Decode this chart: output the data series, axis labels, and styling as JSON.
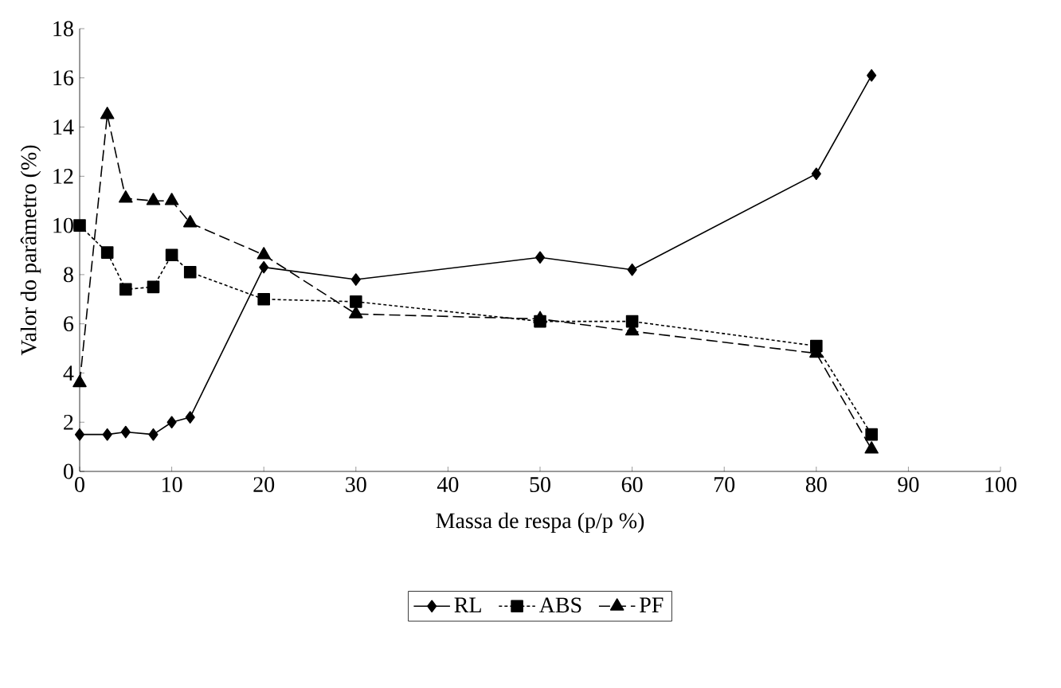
{
  "chart_data": {
    "type": "line",
    "xlabel": "Massa de respa (p/p %)",
    "ylabel": "Valor do parâmetro (%)",
    "x": [
      0,
      3,
      5,
      8,
      10,
      12,
      20,
      30,
      50,
      60,
      80,
      86
    ],
    "series": [
      {
        "name": "RL",
        "color": "#000000",
        "marker": "diamond",
        "line_style": "solid",
        "values": [
          1.5,
          1.5,
          1.6,
          1.5,
          2.0,
          2.2,
          8.3,
          7.8,
          8.7,
          8.2,
          12.1,
          16.1
        ]
      },
      {
        "name": "ABS",
        "color": "#000000",
        "marker": "square",
        "line_style": "dotted",
        "values": [
          10.0,
          8.9,
          7.4,
          7.5,
          8.8,
          8.1,
          7.0,
          6.9,
          6.1,
          6.1,
          5.1,
          1.5
        ]
      },
      {
        "name": "PF",
        "color": "#000000",
        "marker": "triangle",
        "line_style": "dashed",
        "values": [
          3.6,
          14.5,
          11.1,
          11.0,
          11.0,
          10.1,
          8.8,
          6.4,
          6.2,
          5.7,
          4.8,
          0.9
        ]
      }
    ],
    "xlim": [
      0,
      100
    ],
    "xticks": [
      0,
      10,
      20,
      30,
      40,
      50,
      60,
      70,
      80,
      90,
      100
    ],
    "ylim": [
      0,
      18
    ],
    "yticks": [
      0,
      2,
      4,
      6,
      8,
      10,
      12,
      14,
      16,
      18
    ],
    "grid": false,
    "legend": "bottom"
  }
}
